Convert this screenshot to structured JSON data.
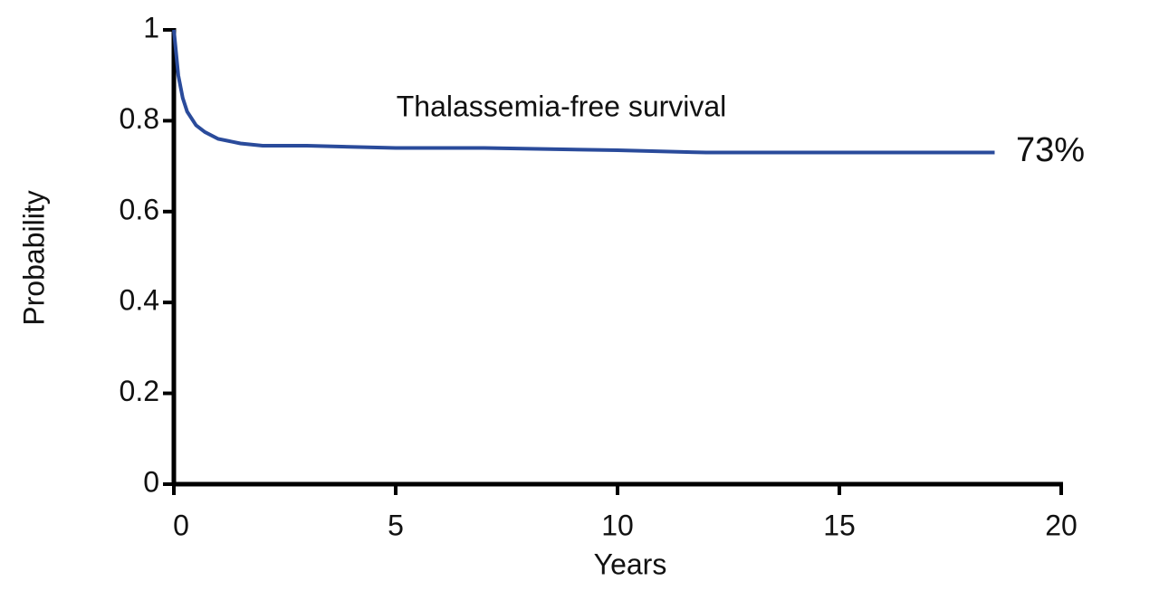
{
  "chart_data": {
    "type": "line",
    "x_label": "Years",
    "y_label": "Probability",
    "annotations": [
      "Thalassemia-free survival",
      "73%"
    ],
    "x": [
      0,
      0.05,
      0.1,
      0.2,
      0.3,
      0.5,
      0.7,
      1,
      1.5,
      2,
      3,
      5,
      7,
      10,
      12,
      15,
      18.5
    ],
    "values": [
      1,
      0.95,
      0.9,
      0.85,
      0.82,
      0.79,
      0.775,
      0.76,
      0.75,
      0.745,
      0.745,
      0.74,
      0.74,
      0.735,
      0.73,
      0.73,
      0.73
    ],
    "color": "#2a4b9b",
    "xlim": [
      0,
      20
    ],
    "xticks": [
      0,
      5,
      10,
      15,
      20
    ],
    "ylim": [
      0,
      1
    ],
    "yticks": [
      0,
      0.2,
      0.4,
      0.6,
      0.8,
      1
    ]
  }
}
